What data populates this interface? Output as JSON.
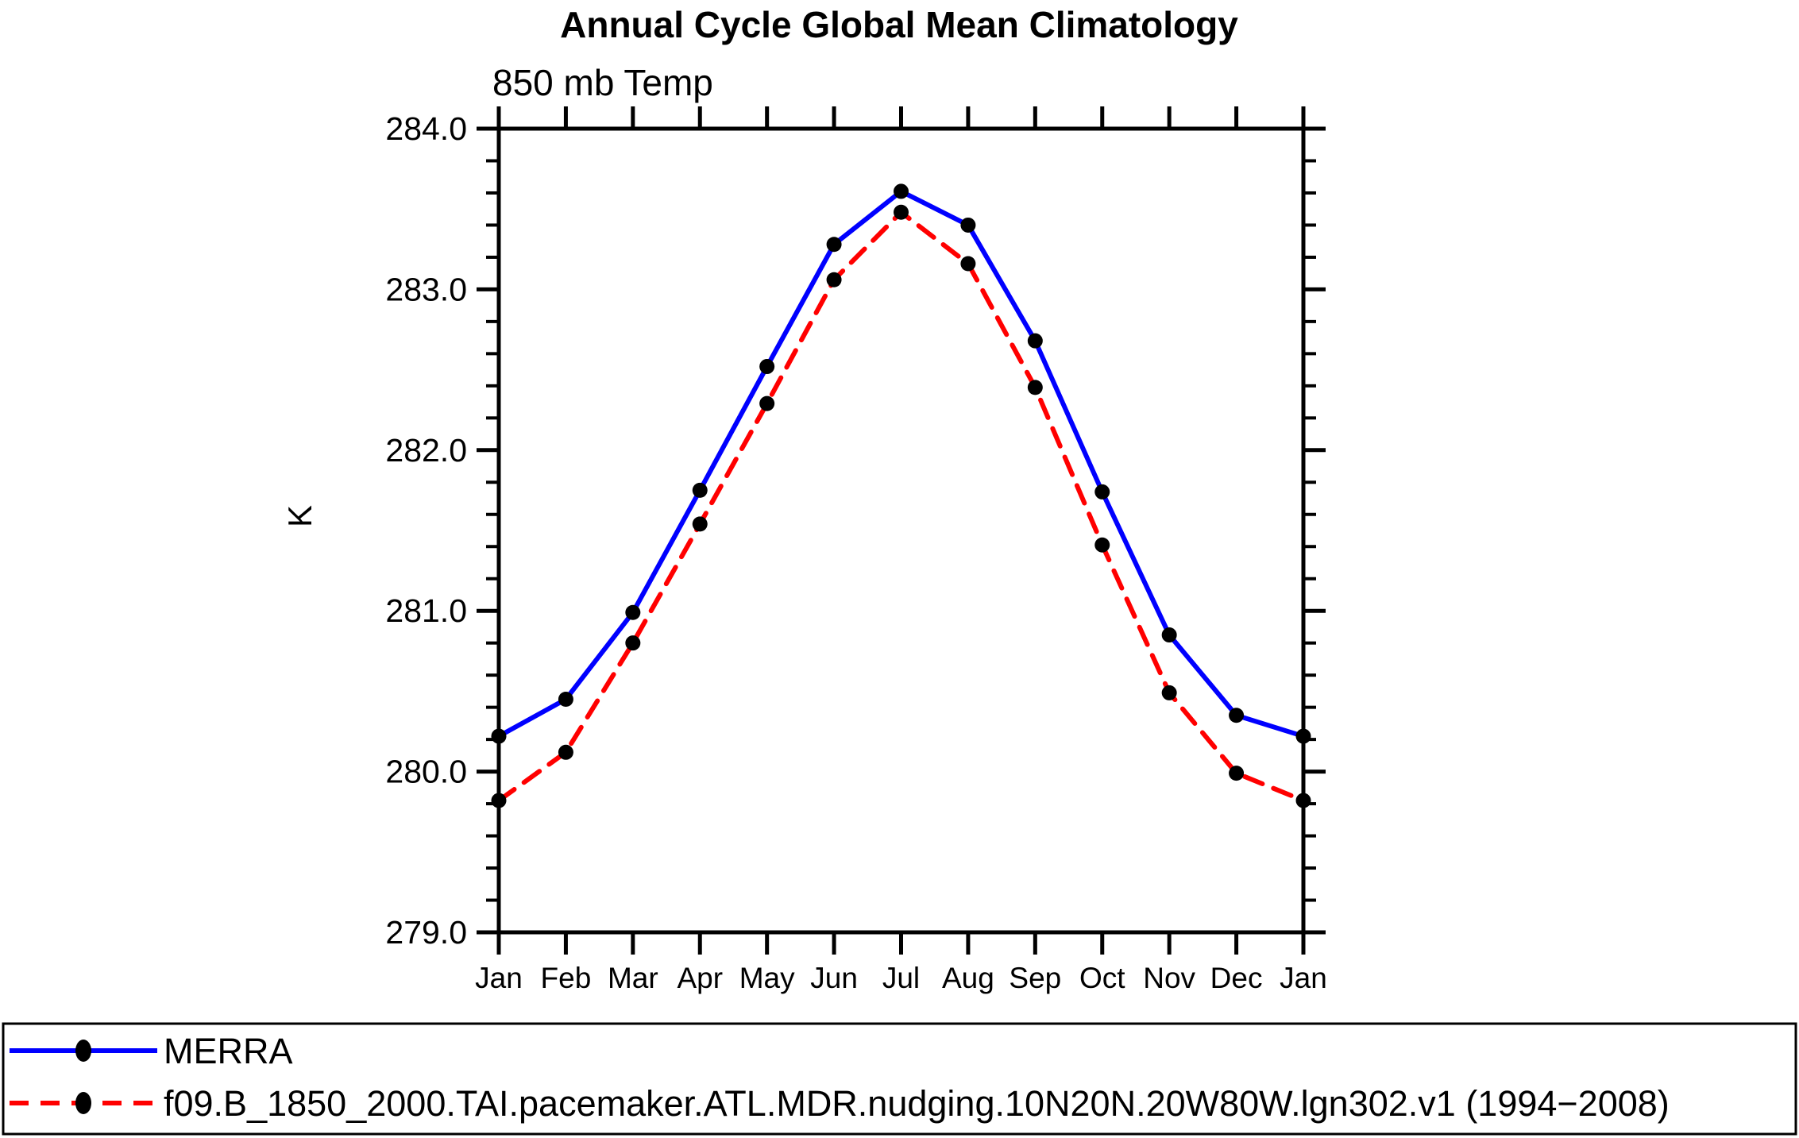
{
  "chart_data": {
    "type": "line",
    "title": "Annual Cycle Global Mean Climatology",
    "subtitle": "850 mb Temp",
    "ylabel": "K",
    "categories": [
      "Jan",
      "Feb",
      "Mar",
      "Apr",
      "May",
      "Jun",
      "Jul",
      "Aug",
      "Sep",
      "Oct",
      "Nov",
      "Dec",
      "Jan"
    ],
    "ylim": [
      279.0,
      284.0
    ],
    "y_major_step": 1.0,
    "y_minor_step": 0.2,
    "y_tick_labels": [
      "279.0",
      "280.0",
      "281.0",
      "282.0",
      "283.0",
      "284.0"
    ],
    "grid": false,
    "legend_position": "bottom",
    "series": [
      {
        "name": "MERRA",
        "color": "#0000ff",
        "line_style": "solid",
        "marker": "filled-circle",
        "marker_color": "#000000",
        "values": [
          280.22,
          280.45,
          280.99,
          281.75,
          282.52,
          283.28,
          283.61,
          283.4,
          282.68,
          281.74,
          280.85,
          280.35,
          280.22
        ]
      },
      {
        "name": "f09.B_1850_2000.TAI.pacemaker.ATL.MDR.nudging.10N20N.20W80W.lgn302.v1 (1994−2008)",
        "color": "#ff0000",
        "line_style": "dashed",
        "marker": "filled-circle",
        "marker_color": "#000000",
        "values": [
          279.82,
          280.12,
          280.8,
          281.54,
          282.29,
          283.06,
          283.48,
          283.16,
          282.39,
          281.41,
          280.49,
          279.99,
          279.82
        ]
      }
    ]
  }
}
